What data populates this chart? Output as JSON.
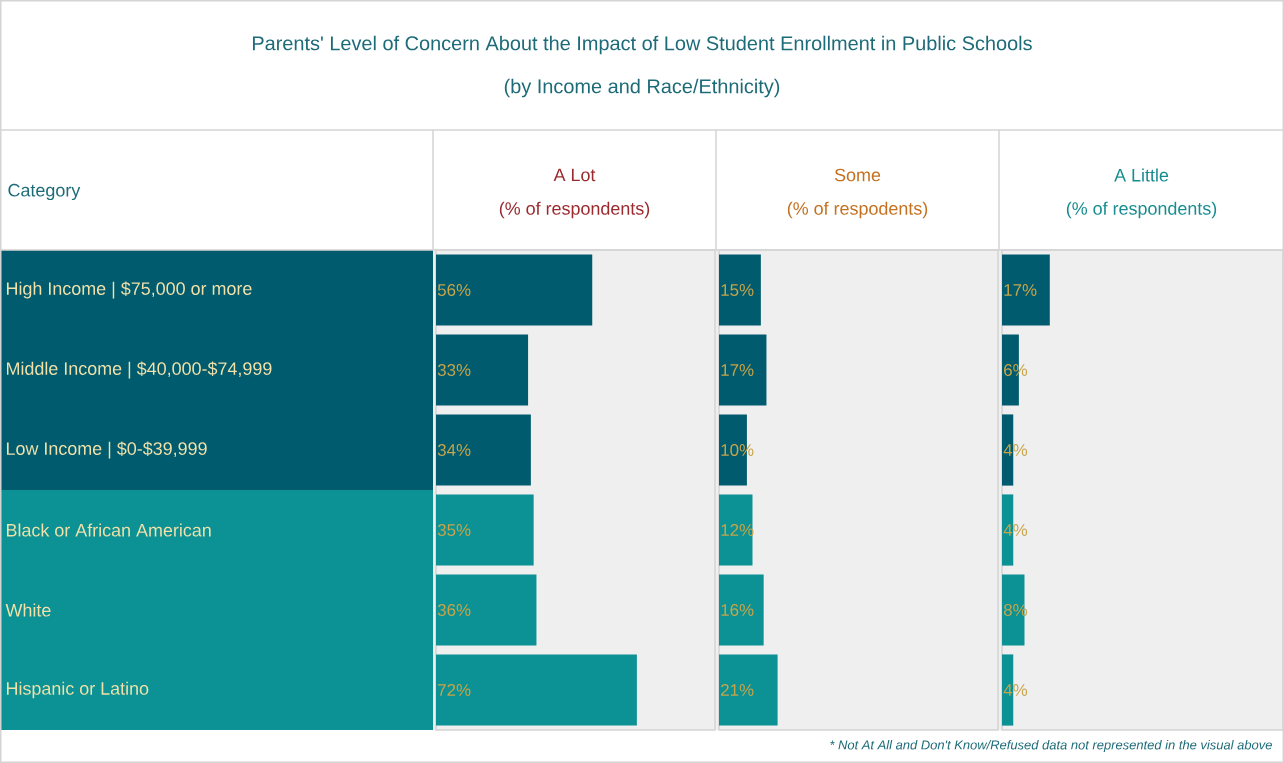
{
  "chart_data": [
    {
      "type": "other",
      "title": "Parents' Level of Concern About the Impact of Low Student Enrollment in Public Schools",
      "subtitle": "(by Income and Race/Ethnicity)",
      "annotations": [
        "* Not At All and Don't Know/Refused data not represented in the visual above"
      ]
    },
    {
      "type": "bar",
      "orientation": "horizontal",
      "title": "A Lot",
      "subtitle": "(% of respondents)",
      "ylabel": "Category",
      "tick_labels": "y",
      "categories": [
        "High Income | $75,000 or more",
        "Middle Income | $40,000-$74,999",
        "Low Income | $0-$39,999",
        "Black or African American",
        "White",
        "Hispanic or Latino"
      ],
      "values": [
        56,
        33,
        34,
        35,
        36,
        72
      ],
      "value_labels": [
        "56%",
        "33%",
        "34%",
        "35%",
        "36%",
        "72%"
      ],
      "colors": [
        "#005b6e",
        "#005b6e",
        "#005b6e",
        "#0c9194",
        "#0c9194",
        "#0c9194"
      ],
      "xlim": [
        0,
        100
      ]
    },
    {
      "type": "bar",
      "orientation": "horizontal",
      "title": "Some",
      "subtitle": "(% of respodents)",
      "tick_labels": false,
      "values": [
        15,
        17,
        10,
        12,
        16,
        21
      ],
      "value_labels": [
        "15%",
        "17%",
        "10%",
        "12%",
        "16%",
        "21%"
      ],
      "colors": [
        "#005b6e",
        "#005b6e",
        "#005b6e",
        "#0c9194",
        "#0c9194",
        "#0c9194"
      ],
      "xlim": [
        0,
        100
      ]
    },
    {
      "type": "bar",
      "orientation": "horizontal",
      "title": "A Little",
      "subtitle": "(% of respondents)",
      "tick_labels": false,
      "values": [
        17,
        6,
        4,
        4,
        8,
        4
      ],
      "value_labels": [
        "17%",
        "6%",
        "4%",
        "4%",
        "8%",
        "4%"
      ],
      "colors": [
        "#005b6e",
        "#005b6e",
        "#005b6e",
        "#0c9194",
        "#0c9194",
        "#0c9194"
      ],
      "xlim": [
        0,
        100
      ]
    }
  ]
}
